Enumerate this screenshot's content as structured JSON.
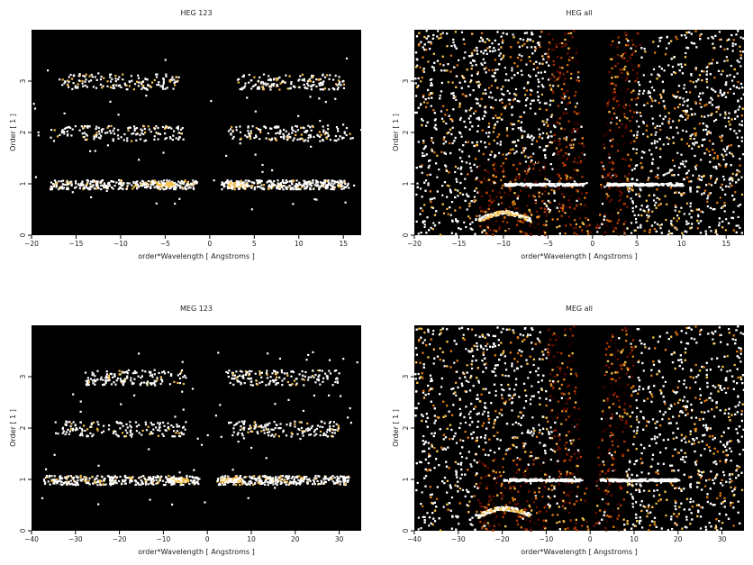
{
  "colors": {
    "background": "#000000",
    "colormap": [
      "#2a0000",
      "#6e0f00",
      "#b33a00",
      "#e07a10",
      "#f7c04a",
      "#ffffff"
    ]
  },
  "chart_data": [
    {
      "type": "heatmap",
      "title": "HEG 123",
      "xlabel": "order*Wavelength [ Angstroms ]",
      "ylabel": "Order [ 1 ]",
      "xlim": [
        -20,
        17
      ],
      "ylim": [
        0,
        4
      ],
      "xticks": [
        -20,
        -15,
        -10,
        -5,
        0,
        5,
        10,
        15
      ],
      "xtick_labels": [
        "−20",
        "−15",
        "−10",
        "−5",
        "0",
        "5",
        "10",
        "15"
      ],
      "yticks": [
        0,
        1,
        2,
        3
      ],
      "bands": [
        {
          "order": 1,
          "x_range": [
            [
              -18,
              -1.5
            ],
            [
              1.2,
              15.5
            ]
          ],
          "density": "medium",
          "bright_x": [
            -5,
            3
          ]
        },
        {
          "order": 2,
          "x_range": [
            [
              -18,
              -3
            ],
            [
              2,
              16
            ]
          ],
          "density": "low"
        },
        {
          "order": 3,
          "x_range": [
            [
              -17,
              -3.5
            ],
            [
              3,
              15
            ]
          ],
          "density": "low"
        }
      ],
      "style": "sparse-counts"
    },
    {
      "type": "heatmap",
      "title": "HEG all",
      "xlabel": "order*Wavelength [ Angstroms ]",
      "ylabel": "Order [ 1 ]",
      "xlim": [
        -20,
        17
      ],
      "ylim": [
        0,
        4
      ],
      "xticks": [
        -20,
        -15,
        -10,
        -5,
        0,
        5,
        10,
        15
      ],
      "xtick_labels": [
        "−20",
        "−15",
        "−10",
        "−5",
        "0",
        "5",
        "10",
        "15"
      ],
      "yticks": [
        0,
        1,
        2,
        3
      ],
      "bands": [
        {
          "order": 1,
          "x_range": [
            [
              -10,
              -1
            ],
            [
              1.5,
              10
            ]
          ],
          "density": "high",
          "bright_x": [
            -4,
            3
          ]
        }
      ],
      "style": "dense-counts"
    },
    {
      "type": "heatmap",
      "title": "MEG 123",
      "xlabel": "order*Wavelength [ Angstroms ]",
      "ylabel": "Order [ 1 ]",
      "xlim": [
        -40,
        35
      ],
      "ylim": [
        0,
        4
      ],
      "xticks": [
        -40,
        -30,
        -20,
        -10,
        0,
        10,
        20,
        30
      ],
      "xtick_labels": [
        "−40",
        "−30",
        "−20",
        "−10",
        "0",
        "10",
        "20",
        "30"
      ],
      "yticks": [
        0,
        1,
        2,
        3
      ],
      "bands": [
        {
          "order": 1,
          "x_range": [
            [
              -38,
              -2
            ],
            [
              2,
              32
            ]
          ],
          "density": "medium",
          "bright_x": [
            -7,
            5
          ]
        },
        {
          "order": 2,
          "x_range": [
            [
              -35,
              -5
            ],
            [
              4,
              30
            ]
          ],
          "density": "low"
        },
        {
          "order": 3,
          "x_range": [
            [
              -28,
              -5
            ],
            [
              4,
              30
            ]
          ],
          "density": "low"
        }
      ],
      "style": "sparse-counts"
    },
    {
      "type": "heatmap",
      "title": "MEG all",
      "xlabel": "order*Wavelength [ Angstroms ]",
      "ylabel": "Order [ 1 ]",
      "xlim": [
        -40,
        35
      ],
      "ylim": [
        0,
        4
      ],
      "xticks": [
        -40,
        -30,
        -20,
        -10,
        0,
        10,
        20,
        30
      ],
      "xtick_labels": [
        "−40",
        "−30",
        "−20",
        "−10",
        "0",
        "10",
        "20",
        "30"
      ],
      "yticks": [
        0,
        1,
        2,
        3
      ],
      "bands": [
        {
          "order": 1,
          "x_range": [
            [
              -20,
              -2
            ],
            [
              2,
              20
            ]
          ],
          "density": "high",
          "bright_x": [
            -8,
            6
          ]
        }
      ],
      "style": "dense-counts"
    }
  ]
}
